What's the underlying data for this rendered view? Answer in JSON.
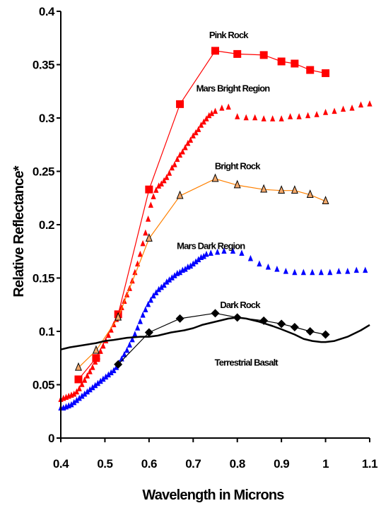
{
  "chart_data": {
    "type": "line",
    "xlabel": "Wavelength in Microns",
    "ylabel": "Relative Reflectance*",
    "xlim": [
      0.4,
      1.1
    ],
    "ylim": [
      0,
      0.4
    ],
    "xticks": [
      "0.4",
      "0.5",
      "0.6",
      "0.7",
      "0.8",
      "0.9",
      "1",
      "1.1"
    ],
    "yticks": [
      "0",
      "0.05",
      "0.1",
      "0.15",
      "0.2",
      "0.25",
      "0.3",
      "0.35",
      "0.4"
    ],
    "grid": false,
    "legend": "none",
    "colors": {
      "pink_rock": "#ff0000",
      "mars_bright": "#ff0000",
      "bright_rock_line": "#ff8000",
      "bright_rock_fill": "#f5a96b",
      "mars_dark": "#0000ff",
      "dark_rock": "#000000",
      "basalt": "#000000"
    },
    "series": [
      {
        "name": "Pink Rock",
        "key": "pink_rock",
        "marker": "square",
        "line": true,
        "x": [
          0.44,
          0.48,
          0.53,
          0.6,
          0.67,
          0.75,
          0.8,
          0.86,
          0.9,
          0.93,
          0.965,
          1.0
        ],
        "y": [
          0.055,
          0.075,
          0.116,
          0.233,
          0.313,
          0.363,
          0.36,
          0.359,
          0.353,
          0.351,
          0.345,
          0.342
        ]
      },
      {
        "name": "Mars Bright Region",
        "key": "mars_bright",
        "marker": "triangle",
        "line": false,
        "x": [
          0.4,
          0.406,
          0.412,
          0.418,
          0.424,
          0.43,
          0.436,
          0.442,
          0.448,
          0.454,
          0.46,
          0.466,
          0.472,
          0.478,
          0.484,
          0.49,
          0.496,
          0.502,
          0.508,
          0.514,
          0.52,
          0.526,
          0.532,
          0.538,
          0.544,
          0.55,
          0.556,
          0.562,
          0.568,
          0.574,
          0.58,
          0.586,
          0.592,
          0.598,
          0.604,
          0.61,
          0.616,
          0.622,
          0.628,
          0.634,
          0.64,
          0.646,
          0.652,
          0.658,
          0.664,
          0.67,
          0.676,
          0.682,
          0.688,
          0.694,
          0.7,
          0.706,
          0.712,
          0.718,
          0.724,
          0.73,
          0.736,
          0.742,
          0.75,
          0.765,
          0.78,
          0.8,
          0.82,
          0.84,
          0.86,
          0.88,
          0.9,
          0.92,
          0.94,
          0.96,
          0.98,
          1.0,
          1.02,
          1.04,
          1.06,
          1.08,
          1.1
        ],
        "y": [
          0.036,
          0.037,
          0.038,
          0.039,
          0.04,
          0.041,
          0.043,
          0.046,
          0.05,
          0.054,
          0.058,
          0.062,
          0.066,
          0.071,
          0.076,
          0.081,
          0.086,
          0.091,
          0.096,
          0.101,
          0.106,
          0.111,
          0.116,
          0.122,
          0.128,
          0.134,
          0.14,
          0.147,
          0.155,
          0.163,
          0.172,
          0.182,
          0.192,
          0.205,
          0.218,
          0.226,
          0.232,
          0.236,
          0.238,
          0.241,
          0.244,
          0.248,
          0.253,
          0.256,
          0.261,
          0.265,
          0.268,
          0.272,
          0.276,
          0.279,
          0.283,
          0.286,
          0.289,
          0.293,
          0.296,
          0.299,
          0.302,
          0.304,
          0.306,
          0.309,
          0.31,
          0.301,
          0.3,
          0.3,
          0.299,
          0.299,
          0.299,
          0.301,
          0.301,
          0.302,
          0.303,
          0.305,
          0.306,
          0.308,
          0.309,
          0.312,
          0.313
        ]
      },
      {
        "name": "Bright Rock",
        "key": "bright_rock",
        "marker": "triangle-outline",
        "line": true,
        "x": [
          0.44,
          0.48,
          0.53,
          0.6,
          0.67,
          0.75,
          0.8,
          0.86,
          0.9,
          0.93,
          0.965,
          1.0
        ],
        "y": [
          0.066,
          0.082,
          0.113,
          0.187,
          0.227,
          0.243,
          0.237,
          0.233,
          0.232,
          0.232,
          0.228,
          0.222
        ]
      },
      {
        "name": "Mars Dark Region",
        "key": "mars_dark",
        "marker": "triangle",
        "line": false,
        "x": [
          0.4,
          0.406,
          0.412,
          0.418,
          0.424,
          0.43,
          0.436,
          0.442,
          0.448,
          0.454,
          0.46,
          0.466,
          0.472,
          0.478,
          0.484,
          0.49,
          0.496,
          0.502,
          0.508,
          0.514,
          0.52,
          0.526,
          0.532,
          0.538,
          0.544,
          0.55,
          0.556,
          0.562,
          0.568,
          0.574,
          0.58,
          0.586,
          0.592,
          0.598,
          0.604,
          0.61,
          0.616,
          0.622,
          0.628,
          0.634,
          0.64,
          0.646,
          0.652,
          0.658,
          0.664,
          0.67,
          0.676,
          0.682,
          0.688,
          0.694,
          0.7,
          0.706,
          0.712,
          0.718,
          0.724,
          0.73,
          0.74,
          0.755,
          0.77,
          0.79,
          0.81,
          0.83,
          0.85,
          0.87,
          0.89,
          0.91,
          0.93,
          0.95,
          0.97,
          0.99,
          1.01,
          1.03,
          1.05,
          1.07,
          1.09
        ],
        "y": [
          0.028,
          0.028,
          0.029,
          0.03,
          0.031,
          0.033,
          0.035,
          0.037,
          0.039,
          0.041,
          0.043,
          0.045,
          0.047,
          0.049,
          0.051,
          0.053,
          0.055,
          0.057,
          0.059,
          0.061,
          0.063,
          0.066,
          0.07,
          0.074,
          0.078,
          0.082,
          0.087,
          0.092,
          0.097,
          0.103,
          0.109,
          0.115,
          0.12,
          0.125,
          0.129,
          0.133,
          0.136,
          0.139,
          0.141,
          0.143,
          0.146,
          0.148,
          0.15,
          0.152,
          0.154,
          0.155,
          0.157,
          0.158,
          0.16,
          0.161,
          0.163,
          0.165,
          0.167,
          0.169,
          0.17,
          0.172,
          0.173,
          0.174,
          0.175,
          0.175,
          0.173,
          0.168,
          0.163,
          0.16,
          0.158,
          0.156,
          0.155,
          0.155,
          0.155,
          0.155,
          0.155,
          0.156,
          0.156,
          0.157,
          0.157
        ]
      },
      {
        "name": "Dark Rock",
        "key": "dark_rock",
        "marker": "diamond",
        "line": true,
        "x": [
          0.53,
          0.6,
          0.67,
          0.75,
          0.8,
          0.86,
          0.9,
          0.93,
          0.965,
          1.0
        ],
        "y": [
          0.069,
          0.099,
          0.112,
          0.117,
          0.113,
          0.11,
          0.107,
          0.104,
          0.1,
          0.097
        ]
      },
      {
        "name": "Terrestrial Basalt",
        "key": "basalt",
        "marker": "none",
        "line": true,
        "x": [
          0.4,
          0.42,
          0.45,
          0.48,
          0.5,
          0.52,
          0.55,
          0.58,
          0.6,
          0.62,
          0.65,
          0.68,
          0.7,
          0.72,
          0.75,
          0.78,
          0.8,
          0.82,
          0.85,
          0.88,
          0.9,
          0.93,
          0.95,
          0.97,
          0.99,
          1.0,
          1.02,
          1.05,
          1.08,
          1.1
        ],
        "y": [
          0.083,
          0.085,
          0.087,
          0.089,
          0.091,
          0.092,
          0.094,
          0.095,
          0.095,
          0.096,
          0.099,
          0.101,
          0.103,
          0.106,
          0.109,
          0.112,
          0.113,
          0.112,
          0.109,
          0.105,
          0.102,
          0.097,
          0.093,
          0.091,
          0.09,
          0.09,
          0.091,
          0.095,
          0.101,
          0.106
        ]
      }
    ],
    "annotations": [
      {
        "text": "Pink Rock",
        "x": 0.78,
        "y": 0.375
      },
      {
        "text": "Mars Bright Region",
        "x": 0.79,
        "y": 0.325
      },
      {
        "text": "Bright Rock",
        "x": 0.8,
        "y": 0.252
      },
      {
        "text": "Mars Dark Region",
        "x": 0.74,
        "y": 0.177
      },
      {
        "text": "Dark Rock",
        "x": 0.806,
        "y": 0.122
      },
      {
        "text": "Terrestrial Basalt",
        "x": 0.82,
        "y": 0.068
      }
    ]
  }
}
